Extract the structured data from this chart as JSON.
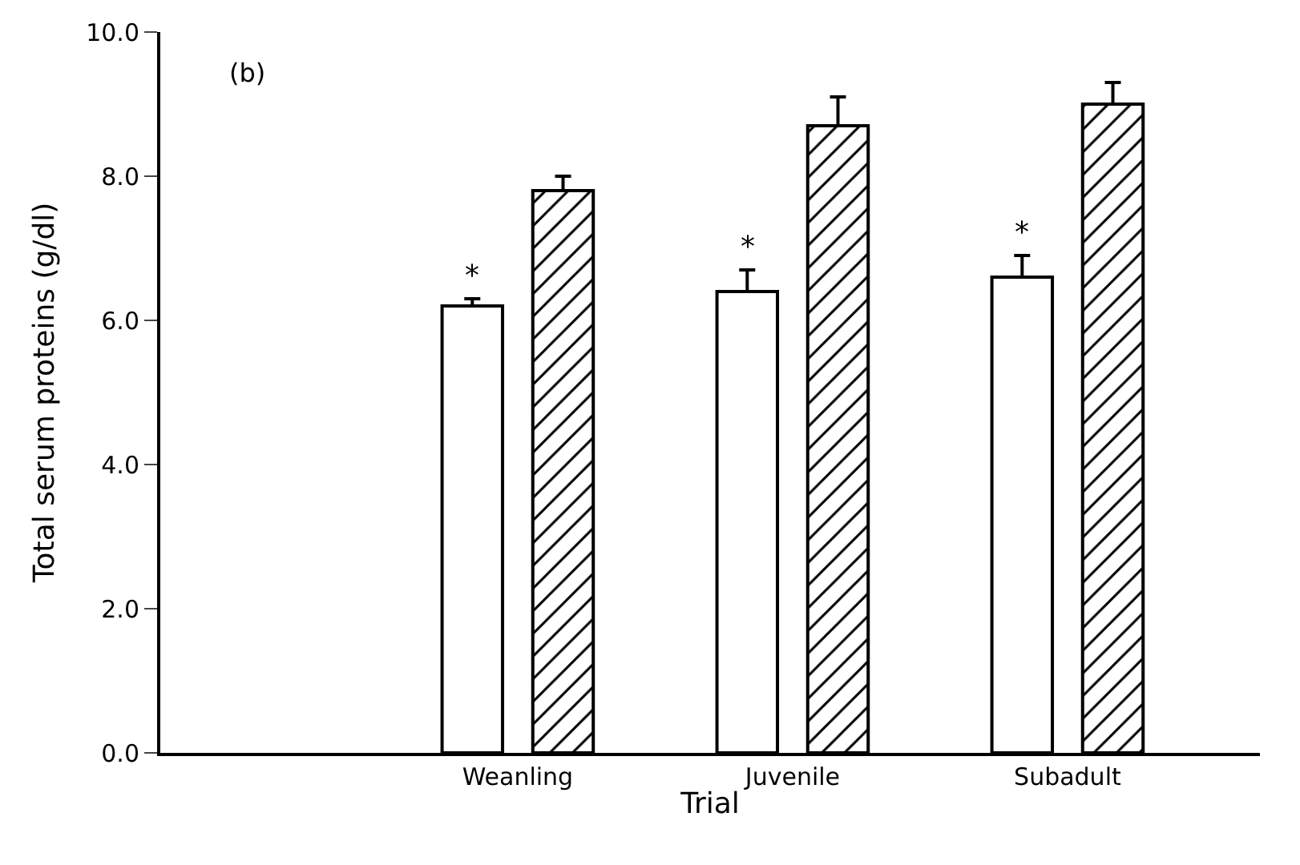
{
  "chart_data": {
    "type": "bar",
    "xlabel": "Trial",
    "ylabel": "Total serum proteins (g/dl)",
    "categories": [
      "Weanling",
      "Juvenile",
      "Subadult"
    ],
    "series": [
      {
        "color": "#ffffff",
        "values": [
          6.2,
          6.4,
          6.6
        ],
        "errors": [
          [
            6.2,
            6.3
          ],
          [
            6.4,
            6.7
          ],
          [
            6.6,
            6.9
          ]
        ]
      },
      {
        "color": "#000000",
        "values": [
          7.8,
          8.7,
          9.0
        ],
        "errors": [
          [
            7.8,
            8.0
          ],
          [
            8.7,
            9.1
          ],
          [
            9.0,
            9.3
          ]
        ]
      }
    ],
    "ylim": [
      0,
      10
    ],
    "yticks": [
      {
        "value": 0,
        "label": "0.0"
      },
      {
        "value": 2,
        "label": "2.0"
      },
      {
        "value": 4,
        "label": "4.0"
      },
      {
        "value": 6,
        "label": "6.0"
      },
      {
        "value": 8,
        "label": "8.0"
      },
      {
        "value": 10,
        "label": "10.0"
      }
    ],
    "annotations": [
      "(b)",
      "*",
      "*",
      "*"
    ]
  }
}
